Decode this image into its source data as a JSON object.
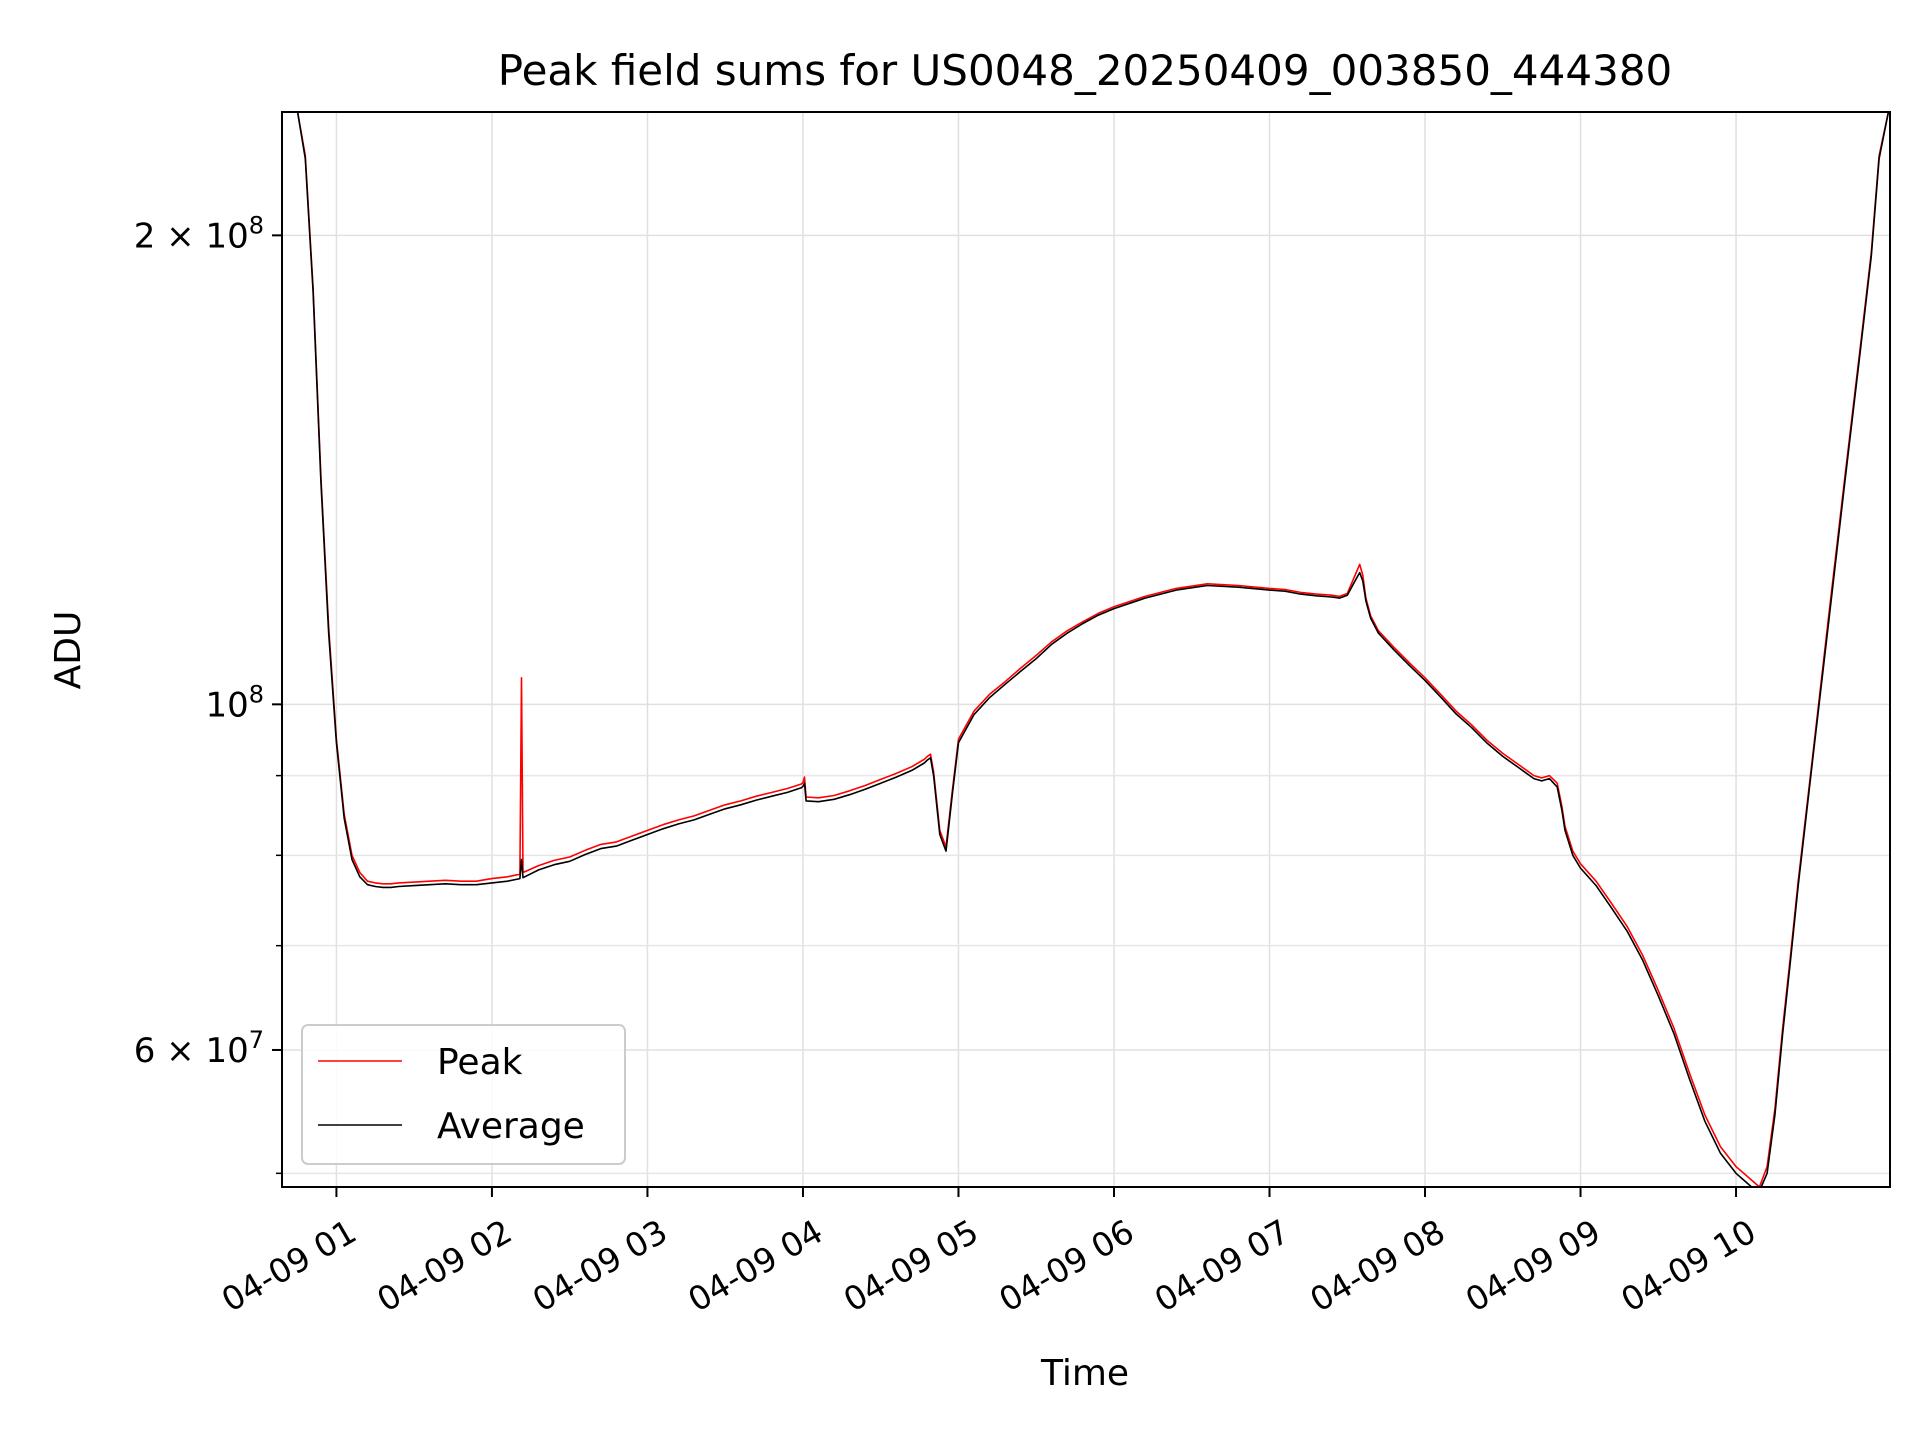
{
  "chart_data": {
    "type": "line",
    "title": "Peak field sums for US0048_20250409_003850_444380",
    "xlabel": "Time",
    "ylabel": "ADU",
    "x_unit": "hours on 2025-04-09",
    "xlim": [
      0.65,
      10.99
    ],
    "ylim": [
      49000000,
      240000000
    ],
    "y_scale": "log",
    "grid": true,
    "legend_position": "lower left",
    "x_ticks": [
      {
        "value": 1,
        "label": "04-09 01"
      },
      {
        "value": 2,
        "label": "04-09 02"
      },
      {
        "value": 3,
        "label": "04-09 03"
      },
      {
        "value": 4,
        "label": "04-09 04"
      },
      {
        "value": 5,
        "label": "04-09 05"
      },
      {
        "value": 6,
        "label": "04-09 06"
      },
      {
        "value": 7,
        "label": "04-09 07"
      },
      {
        "value": 8,
        "label": "04-09 08"
      },
      {
        "value": 9,
        "label": "04-09 09"
      },
      {
        "value": 10,
        "label": "04-09 10"
      }
    ],
    "y_major_ticks": [
      {
        "value": 60000000,
        "mantissa": "6",
        "exponent": "7"
      },
      {
        "value": 100000000,
        "mantissa": "",
        "exponent": "8"
      },
      {
        "value": 200000000,
        "mantissa": "2",
        "exponent": "8"
      }
    ],
    "y_minor_ticks": [
      50000000,
      70000000,
      80000000,
      90000000
    ],
    "series": [
      {
        "name": "Peak",
        "color": "#ff0000",
        "x": [
          0.68,
          0.75,
          0.8,
          0.85,
          0.9,
          0.95,
          1.0,
          1.05,
          1.1,
          1.15,
          1.2,
          1.25,
          1.3,
          1.35,
          1.4,
          1.5,
          1.6,
          1.7,
          1.8,
          1.9,
          2.0,
          2.1,
          2.18,
          2.19,
          2.2,
          2.3,
          2.4,
          2.5,
          2.6,
          2.7,
          2.8,
          2.9,
          3.0,
          3.1,
          3.2,
          3.3,
          3.4,
          3.5,
          3.6,
          3.7,
          3.8,
          3.9,
          3.99,
          4.0,
          4.01,
          4.02,
          4.1,
          4.2,
          4.3,
          4.4,
          4.5,
          4.6,
          4.7,
          4.78,
          4.8,
          4.82,
          4.84,
          4.88,
          4.92,
          4.96,
          5.0,
          5.1,
          5.2,
          5.3,
          5.4,
          5.5,
          5.6,
          5.7,
          5.8,
          5.9,
          6.0,
          6.2,
          6.4,
          6.6,
          6.8,
          7.0,
          7.1,
          7.2,
          7.3,
          7.4,
          7.45,
          7.5,
          7.55,
          7.58,
          7.6,
          7.62,
          7.65,
          7.7,
          7.8,
          7.9,
          8.0,
          8.1,
          8.2,
          8.3,
          8.4,
          8.5,
          8.6,
          8.7,
          8.75,
          8.8,
          8.85,
          8.88,
          8.9,
          8.95,
          9.0,
          9.1,
          9.2,
          9.3,
          9.4,
          9.5,
          9.6,
          9.7,
          9.8,
          9.9,
          10.0,
          10.05,
          10.1,
          10.15,
          10.2,
          10.25,
          10.3,
          10.35,
          10.4,
          10.5,
          10.6,
          10.7,
          10.8,
          10.87,
          10.92,
          10.98
        ],
        "y": [
          240000000,
          240000000,
          225000000,
          185000000,
          140000000,
          112000000,
          95000000,
          85000000,
          80000000,
          78000000,
          77000000,
          76800000,
          76700000,
          76700000,
          76800000,
          76900000,
          77000000,
          77100000,
          77000000,
          77000000,
          77300000,
          77500000,
          77800000,
          104000000,
          78000000,
          78800000,
          79400000,
          79800000,
          80600000,
          81300000,
          81600000,
          82300000,
          83000000,
          83700000,
          84300000,
          84800000,
          85500000,
          86200000,
          86700000,
          87300000,
          87800000,
          88300000,
          88900000,
          89100000,
          89800000,
          87200000,
          87100000,
          87400000,
          88000000,
          88700000,
          89500000,
          90300000,
          91200000,
          92200000,
          92600000,
          92900000,
          90500000,
          83000000,
          81000000,
          88000000,
          95000000,
          99000000,
          101500000,
          103400000,
          105500000,
          107500000,
          109700000,
          111500000,
          113000000,
          114400000,
          115500000,
          117300000,
          118700000,
          119500000,
          119200000,
          118700000,
          118500000,
          118000000,
          117700000,
          117500000,
          117300000,
          117800000,
          121000000,
          123000000,
          121000000,
          117000000,
          114000000,
          111500000,
          108800000,
          106300000,
          104000000,
          101500000,
          99000000,
          97000000,
          94800000,
          93000000,
          91500000,
          90000000,
          89700000,
          90000000,
          89000000,
          86000000,
          83500000,
          80500000,
          79000000,
          77000000,
          74500000,
          72000000,
          69000000,
          65500000,
          62000000,
          58000000,
          54500000,
          52000000,
          50500000,
          50000000,
          49500000,
          49000000,
          50500000,
          55000000,
          62000000,
          69000000,
          77000000,
          94000000,
          115000000,
          140000000,
          170000000,
          195000000,
          225000000,
          240000000
        ]
      },
      {
        "name": "Average",
        "color": "#000000",
        "x": [
          0.68,
          0.75,
          0.8,
          0.85,
          0.9,
          0.95,
          1.0,
          1.05,
          1.1,
          1.15,
          1.2,
          1.25,
          1.3,
          1.35,
          1.4,
          1.5,
          1.6,
          1.7,
          1.8,
          1.9,
          2.0,
          2.1,
          2.18,
          2.19,
          2.2,
          2.3,
          2.4,
          2.5,
          2.6,
          2.7,
          2.8,
          2.9,
          3.0,
          3.1,
          3.2,
          3.3,
          3.4,
          3.5,
          3.6,
          3.7,
          3.8,
          3.9,
          3.99,
          4.0,
          4.01,
          4.02,
          4.1,
          4.2,
          4.3,
          4.4,
          4.5,
          4.6,
          4.7,
          4.78,
          4.8,
          4.82,
          4.84,
          4.88,
          4.92,
          4.96,
          5.0,
          5.1,
          5.2,
          5.3,
          5.4,
          5.5,
          5.6,
          5.7,
          5.8,
          5.9,
          6.0,
          6.2,
          6.4,
          6.6,
          6.8,
          7.0,
          7.1,
          7.2,
          7.3,
          7.4,
          7.45,
          7.5,
          7.55,
          7.58,
          7.6,
          7.62,
          7.65,
          7.7,
          7.8,
          7.9,
          8.0,
          8.1,
          8.2,
          8.3,
          8.4,
          8.5,
          8.6,
          8.7,
          8.75,
          8.8,
          8.85,
          8.88,
          8.9,
          8.95,
          9.0,
          9.1,
          9.2,
          9.3,
          9.4,
          9.5,
          9.6,
          9.7,
          9.8,
          9.9,
          10.0,
          10.05,
          10.1,
          10.15,
          10.2,
          10.25,
          10.3,
          10.35,
          10.4,
          10.5,
          10.6,
          10.7,
          10.8,
          10.87,
          10.92,
          10.98
        ],
        "y": [
          240000000,
          240000000,
          224000000,
          184000000,
          139000000,
          111000000,
          94500000,
          84500000,
          79500000,
          77500000,
          76600000,
          76400000,
          76300000,
          76300000,
          76400000,
          76500000,
          76600000,
          76700000,
          76600000,
          76600000,
          76800000,
          77000000,
          77300000,
          79500000,
          77400000,
          78300000,
          78900000,
          79300000,
          80100000,
          80800000,
          81100000,
          81800000,
          82500000,
          83200000,
          83800000,
          84300000,
          85000000,
          85700000,
          86200000,
          86800000,
          87300000,
          87800000,
          88400000,
          88600000,
          89000000,
          86700000,
          86600000,
          86900000,
          87500000,
          88200000,
          89000000,
          89800000,
          90700000,
          91700000,
          92100000,
          92400000,
          90000000,
          82500000,
          80500000,
          87500000,
          94500000,
          98500000,
          101000000,
          103000000,
          105000000,
          107000000,
          109300000,
          111100000,
          112700000,
          114100000,
          115200000,
          117000000,
          118400000,
          119200000,
          118900000,
          118400000,
          118200000,
          117700000,
          117400000,
          117200000,
          117000000,
          117500000,
          120000000,
          121500000,
          120000000,
          116500000,
          113600000,
          111100000,
          108400000,
          105900000,
          103600000,
          101100000,
          98600000,
          96600000,
          94400000,
          92600000,
          91100000,
          89600000,
          89300000,
          89600000,
          88500000,
          85500000,
          83000000,
          80000000,
          78500000,
          76500000,
          74000000,
          71500000,
          68500000,
          65000000,
          61500000,
          57500000,
          54000000,
          51500000,
          50000000,
          49500000,
          49000000,
          48700000,
          50000000,
          54500000,
          61500000,
          68500000,
          76500000,
          93500000,
          114000000,
          139000000,
          169000000,
          194000000,
          224000000,
          240000000
        ]
      }
    ]
  }
}
